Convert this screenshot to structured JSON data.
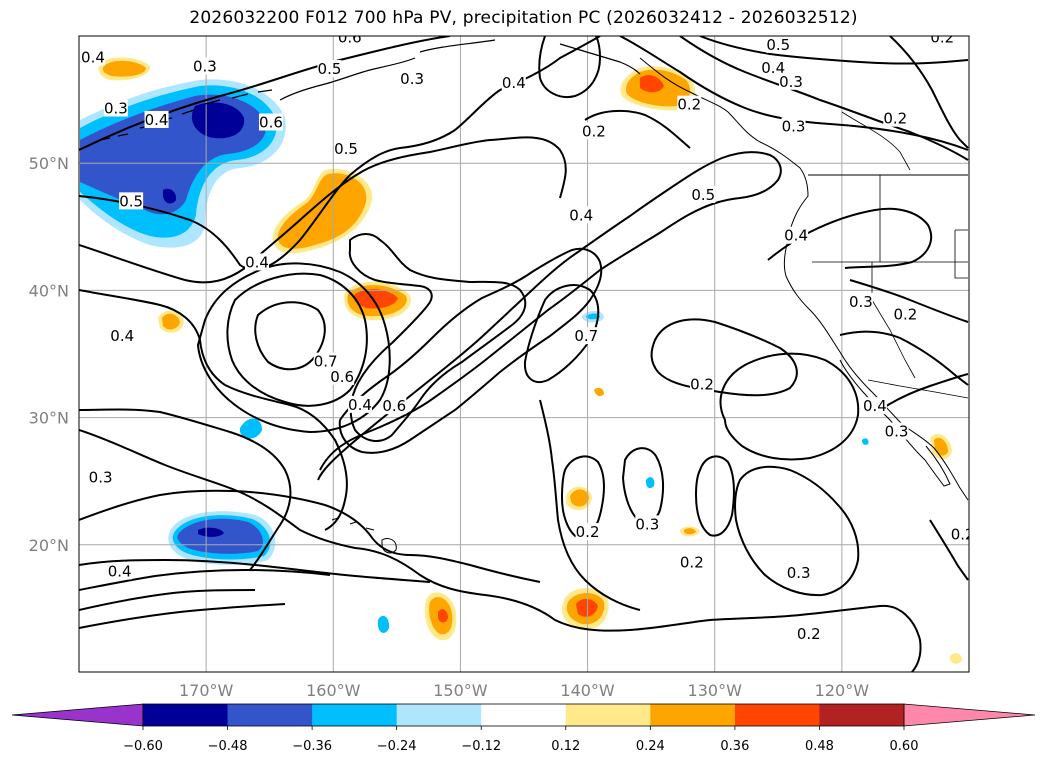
{
  "title": "2026032200 F012 700 hPa PV, precipitation PC (2026032412 - 2026032512)",
  "map": {
    "projection": "plate-carree",
    "lon_range": [
      -180,
      -110
    ],
    "lat_range": [
      10,
      60
    ],
    "lat_ticks": [
      {
        "value": 20,
        "label": "20°N"
      },
      {
        "value": 30,
        "label": "30°N"
      },
      {
        "value": 40,
        "label": "40°N"
      },
      {
        "value": 50,
        "label": "50°N"
      }
    ],
    "lon_ticks": [
      {
        "value": -170,
        "label": "170°W"
      },
      {
        "value": -160,
        "label": "160°W"
      },
      {
        "value": -150,
        "label": "150°W"
      },
      {
        "value": -140,
        "label": "140°W"
      },
      {
        "value": -130,
        "label": "130°W"
      },
      {
        "value": -120,
        "label": "120°W"
      }
    ],
    "grid": true,
    "contour_field": "700 hPa PV",
    "contour_labels": [
      {
        "text": "0.4",
        "lon": -178.9,
        "lat": 58.3
      },
      {
        "text": "0.3",
        "lon": -170.1,
        "lat": 57.6
      },
      {
        "text": "0.6",
        "lon": -158.7,
        "lat": 59.9
      },
      {
        "text": "0.5",
        "lon": -160.3,
        "lat": 57.4
      },
      {
        "text": "0.3",
        "lon": -153.8,
        "lat": 56.6
      },
      {
        "text": "0.4",
        "lon": -145.8,
        "lat": 56.3
      },
      {
        "text": "0.5",
        "lon": -125.0,
        "lat": 59.3
      },
      {
        "text": "0.4",
        "lon": -125.4,
        "lat": 57.5
      },
      {
        "text": "0.3",
        "lon": -124.0,
        "lat": 56.4
      },
      {
        "text": "0.2",
        "lon": -132.0,
        "lat": 54.6
      },
      {
        "text": "0.3",
        "lon": -123.8,
        "lat": 52.9
      },
      {
        "text": "0.2",
        "lon": -139.5,
        "lat": 52.5
      },
      {
        "text": "0.2",
        "lon": -112.1,
        "lat": 59.9
      },
      {
        "text": "0.2",
        "lon": -115.8,
        "lat": 53.5
      },
      {
        "text": "0.3",
        "lon": -177.1,
        "lat": 54.3
      },
      {
        "text": "0.4",
        "lon": -173.9,
        "lat": 53.4
      },
      {
        "text": "0.6",
        "lon": -164.9,
        "lat": 53.2
      },
      {
        "text": "0.5",
        "lon": -159.0,
        "lat": 51.1
      },
      {
        "text": "0.5",
        "lon": -175.9,
        "lat": 47.0
      },
      {
        "text": "0.4",
        "lon": -166.0,
        "lat": 42.2
      },
      {
        "text": "0.4",
        "lon": -140.5,
        "lat": 45.9
      },
      {
        "text": "0.5",
        "lon": -130.9,
        "lat": 47.5
      },
      {
        "text": "0.4",
        "lon": -123.6,
        "lat": 44.3
      },
      {
        "text": "0.3",
        "lon": -118.5,
        "lat": 39.1
      },
      {
        "text": "0.2",
        "lon": -115.0,
        "lat": 38.1
      },
      {
        "text": "0.4",
        "lon": -176.6,
        "lat": 36.4
      },
      {
        "text": "0.7",
        "lon": -160.6,
        "lat": 34.4
      },
      {
        "text": "0.6",
        "lon": -159.3,
        "lat": 33.2
      },
      {
        "text": "0.4",
        "lon": -157.9,
        "lat": 31.0
      },
      {
        "text": "0.6",
        "lon": -155.2,
        "lat": 30.9
      },
      {
        "text": "0.7",
        "lon": -140.1,
        "lat": 36.4
      },
      {
        "text": "0.2",
        "lon": -131.0,
        "lat": 32.6
      },
      {
        "text": "0.4",
        "lon": -117.4,
        "lat": 30.9
      },
      {
        "text": "0.3",
        "lon": -115.7,
        "lat": 28.9
      },
      {
        "text": "0.3",
        "lon": -178.3,
        "lat": 25.3
      },
      {
        "text": "0.2",
        "lon": -140.0,
        "lat": 21.0
      },
      {
        "text": "0.3",
        "lon": -135.3,
        "lat": 21.6
      },
      {
        "text": "0.2",
        "lon": -131.8,
        "lat": 18.6
      },
      {
        "text": "0.3",
        "lon": -123.4,
        "lat": 17.8
      },
      {
        "text": "0.2",
        "lon": -122.6,
        "lat": 13.0
      },
      {
        "text": "0.4",
        "lon": -176.8,
        "lat": 17.9
      },
      {
        "text": "0.2",
        "lon": -110.5,
        "lat": 20.8
      }
    ]
  },
  "colorbar": {
    "tick_labels": [
      "−0.60",
      "−0.48",
      "−0.36",
      "−0.24",
      "−0.12",
      "0.12",
      "0.24",
      "0.36",
      "0.48",
      "0.60"
    ],
    "colors": [
      "#9933cc",
      "#000099",
      "#3355cc",
      "#00bfff",
      "#aee6ff",
      "#ffffff",
      "#ffe98a",
      "#ffa500",
      "#ff4500",
      "#b22222",
      "#ff88aa"
    ],
    "extend": "both"
  },
  "colors": {
    "axis": "#000000",
    "grid": "#a8a8a8",
    "tick_label": "#808080"
  }
}
